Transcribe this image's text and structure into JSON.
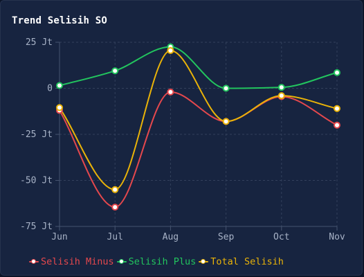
{
  "title": "Trend Selisih SO",
  "colors": {
    "background": "#172440",
    "grid": "#33415c",
    "axis": "#46546f",
    "tick": "#a8b3c7"
  },
  "chart_data": {
    "type": "line",
    "categories": [
      "Jun",
      "Jul",
      "Aug",
      "Sep",
      "Oct",
      "Nov"
    ],
    "ylim": [
      -75,
      25
    ],
    "yticks": [
      25,
      0,
      -25,
      -50,
      -75
    ],
    "ytick_labels": [
      "25 Jt",
      "0",
      "-25 Jt",
      "-50 Jt",
      "-75 Jt"
    ],
    "grid": true,
    "smooth": true,
    "legend_position": "bottom-left",
    "series": [
      {
        "name": "Selisih Minus",
        "color": "#e5484d",
        "values": [
          -12,
          -64.5,
          -2,
          -18,
          -4.5,
          -20
        ]
      },
      {
        "name": "Selisih Plus",
        "color": "#22c55e",
        "values": [
          1.5,
          9.5,
          22.5,
          0,
          0.5,
          8.5
        ]
      },
      {
        "name": "Total Selisih",
        "color": "#eab308",
        "values": [
          -10.5,
          -55,
          20.5,
          -18,
          -4,
          -11
        ]
      }
    ]
  }
}
